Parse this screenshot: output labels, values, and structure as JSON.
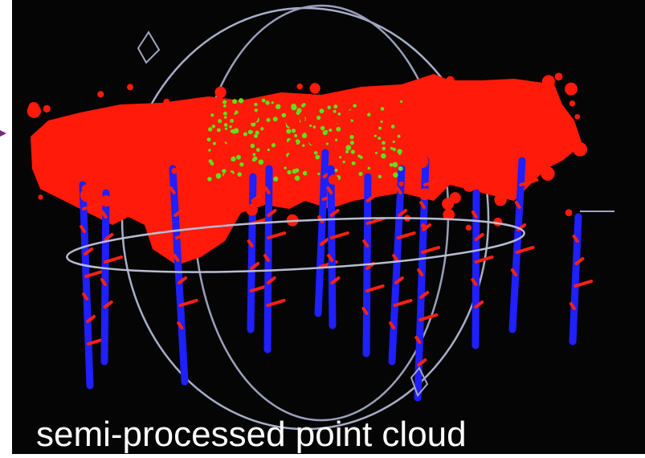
{
  "caption": "semi-processed point cloud"
}
